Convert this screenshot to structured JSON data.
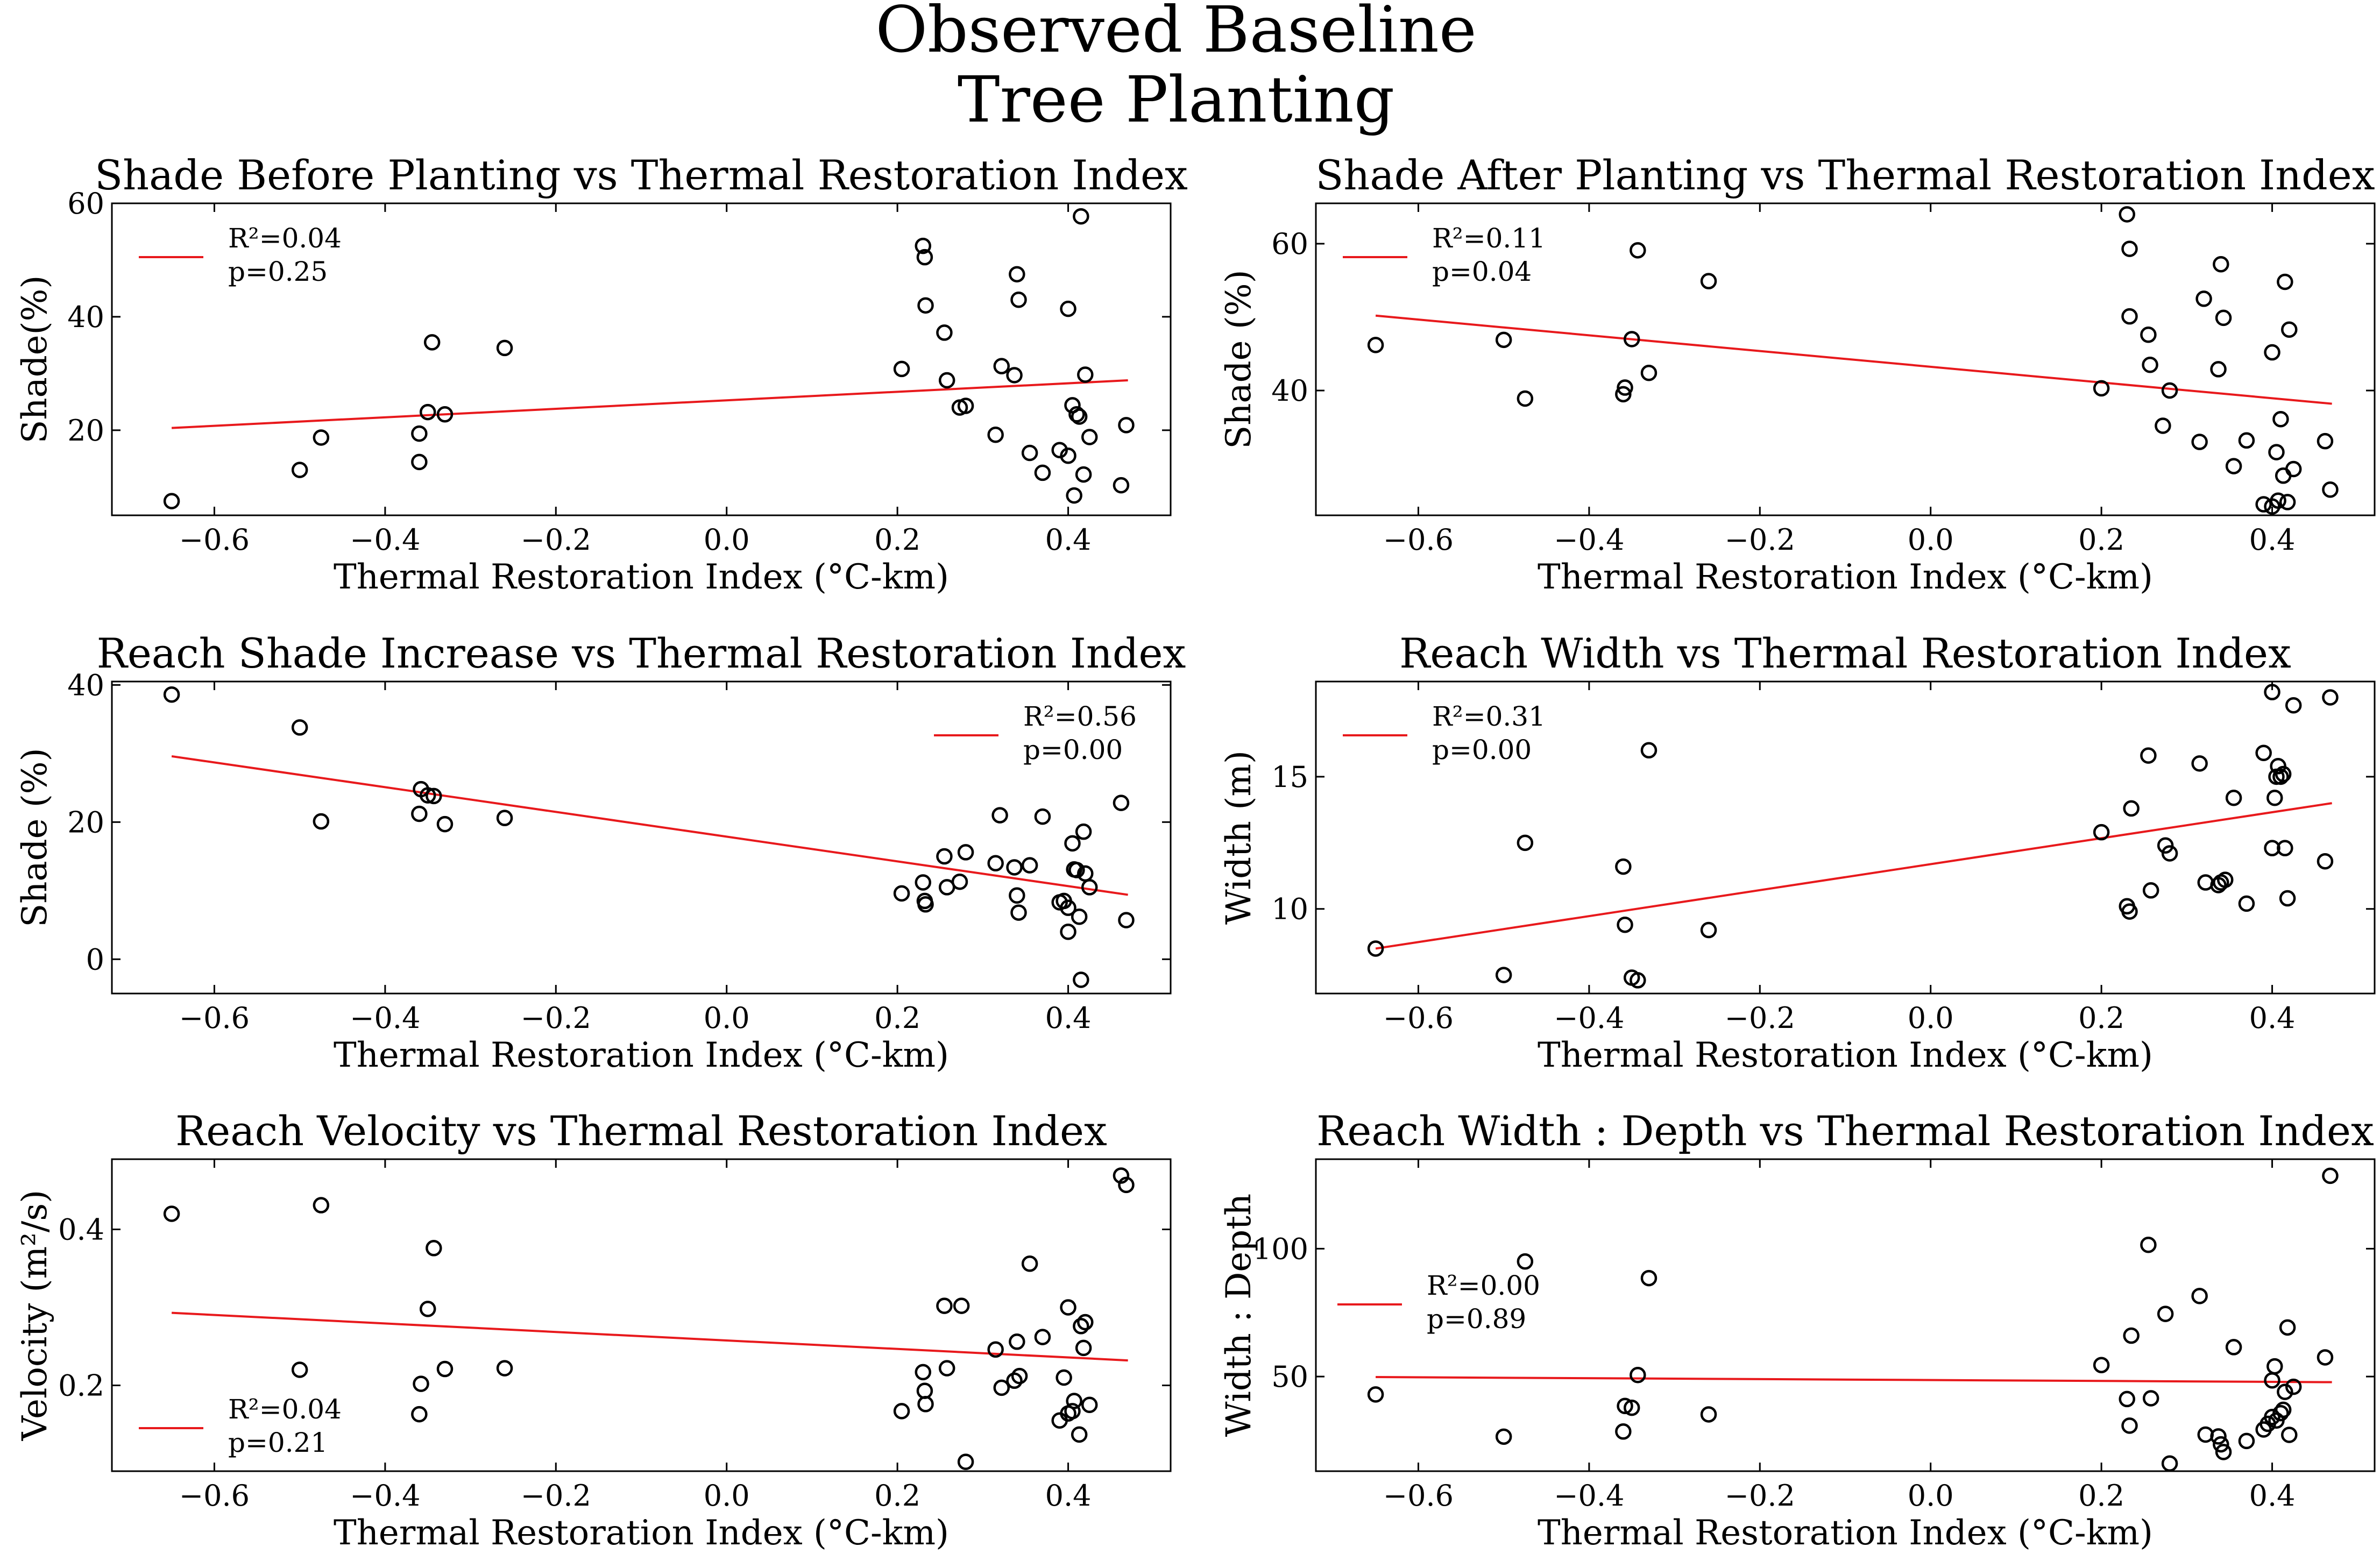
{
  "figure": {
    "title_line1": "Observed Baseline",
    "title_line2": "Tree Planting"
  },
  "chart_data": [
    {
      "type": "scatter",
      "title": "Shade Before Planting vs Thermal Restoration Index",
      "xlabel": "Thermal Restoration Index (°C-km)",
      "ylabel": "Shade(%)",
      "xlim": [
        -0.72,
        0.52
      ],
      "ylim": [
        5,
        60
      ],
      "xticks": [
        -0.6,
        -0.4,
        -0.2,
        0.0,
        0.2,
        0.4
      ],
      "xtick_labels": [
        "−0.6",
        "−0.4",
        "−0.2",
        "0.0",
        "0.2",
        "0.4"
      ],
      "yticks": [
        20,
        40,
        60
      ],
      "ytick_labels": [
        "20",
        "40",
        "60"
      ],
      "legend_position": "upper-left",
      "legend_r2": "R²=0.04",
      "legend_p": "p=0.25",
      "fit": {
        "x": [
          -0.65,
          0.47
        ],
        "y": [
          20.4,
          28.8
        ]
      },
      "points": [
        [
          -0.65,
          7.5
        ],
        [
          -0.5,
          13
        ],
        [
          -0.475,
          18.7
        ],
        [
          -0.36,
          19.4
        ],
        [
          -0.36,
          14.4
        ],
        [
          -0.35,
          23.2
        ],
        [
          -0.345,
          35.5
        ],
        [
          -0.33,
          22.8
        ],
        [
          -0.26,
          34.5
        ],
        [
          0.205,
          30.8
        ],
        [
          0.23,
          52.5
        ],
        [
          0.232,
          50.5
        ],
        [
          0.233,
          42
        ],
        [
          0.255,
          37.2
        ],
        [
          0.258,
          28.8
        ],
        [
          0.273,
          24
        ],
        [
          0.28,
          24.3
        ],
        [
          0.315,
          19.2
        ],
        [
          0.322,
          31.3
        ],
        [
          0.337,
          29.7
        ],
        [
          0.34,
          47.5
        ],
        [
          0.342,
          43
        ],
        [
          0.355,
          16
        ],
        [
          0.37,
          12.5
        ],
        [
          0.39,
          16.5
        ],
        [
          0.4,
          15.5
        ],
        [
          0.4,
          41.4
        ],
        [
          0.405,
          24.4
        ],
        [
          0.407,
          8.5
        ],
        [
          0.41,
          22.8
        ],
        [
          0.413,
          22.4
        ],
        [
          0.415,
          57.7
        ],
        [
          0.418,
          12.2
        ],
        [
          0.42,
          29.8
        ],
        [
          0.425,
          18.8
        ],
        [
          0.462,
          10.3
        ],
        [
          0.468,
          20.9
        ]
      ]
    },
    {
      "type": "scatter",
      "title": "Shade After Planting vs Thermal Restoration Index",
      "xlabel": "Thermal Restoration Index (°C-km)",
      "ylabel": "Shade (%)",
      "xlim": [
        -0.72,
        0.52
      ],
      "ylim": [
        23,
        65.5
      ],
      "xticks": [
        -0.6,
        -0.4,
        -0.2,
        0.0,
        0.2,
        0.4
      ],
      "xtick_labels": [
        "−0.6",
        "−0.4",
        "−0.2",
        "0.0",
        "0.2",
        "0.4"
      ],
      "yticks": [
        40,
        60
      ],
      "ytick_labels": [
        "40",
        "60"
      ],
      "legend_position": "upper-left",
      "legend_r2": "R²=0.11",
      "legend_p": "p=0.04",
      "fit": {
        "x": [
          -0.65,
          0.47
        ],
        "y": [
          50.2,
          38.2
        ]
      },
      "points": [
        [
          -0.65,
          46.2
        ],
        [
          -0.5,
          46.9
        ],
        [
          -0.475,
          38.9
        ],
        [
          -0.36,
          39.5
        ],
        [
          -0.358,
          40.4
        ],
        [
          -0.35,
          47
        ],
        [
          -0.343,
          59.1
        ],
        [
          -0.33,
          42.4
        ],
        [
          -0.26,
          54.9
        ],
        [
          0.2,
          40.3
        ],
        [
          0.23,
          64
        ],
        [
          0.233,
          59.3
        ],
        [
          0.233,
          50.1
        ],
        [
          0.255,
          47.6
        ],
        [
          0.257,
          43.5
        ],
        [
          0.272,
          35.2
        ],
        [
          0.28,
          40
        ],
        [
          0.315,
          33
        ],
        [
          0.32,
          52.5
        ],
        [
          0.337,
          42.9
        ],
        [
          0.34,
          57.2
        ],
        [
          0.343,
          49.9
        ],
        [
          0.355,
          29.7
        ],
        [
          0.37,
          33.2
        ],
        [
          0.39,
          24.5
        ],
        [
          0.4,
          24.2
        ],
        [
          0.4,
          45.2
        ],
        [
          0.405,
          31.6
        ],
        [
          0.407,
          25
        ],
        [
          0.41,
          36.1
        ],
        [
          0.413,
          28.4
        ],
        [
          0.415,
          54.8
        ],
        [
          0.418,
          24.8
        ],
        [
          0.42,
          48.3
        ],
        [
          0.425,
          29.3
        ],
        [
          0.462,
          33.1
        ],
        [
          0.468,
          26.5
        ]
      ]
    },
    {
      "type": "scatter",
      "title": "Reach Shade Increase vs Thermal Restoration Index",
      "xlabel": "Thermal Restoration Index (°C-km)",
      "ylabel": "Shade (%)",
      "xlim": [
        -0.72,
        0.52
      ],
      "ylim": [
        -5,
        40.5
      ],
      "xticks": [
        -0.6,
        -0.4,
        -0.2,
        0.0,
        0.2,
        0.4
      ],
      "xtick_labels": [
        "−0.6",
        "−0.4",
        "−0.2",
        "0.0",
        "0.2",
        "0.4"
      ],
      "yticks": [
        0,
        20,
        40
      ],
      "ytick_labels": [
        "0",
        "20",
        "40"
      ],
      "legend_position": "upper-right",
      "legend_r2": "R²=0.56",
      "legend_p": "p=0.00",
      "fit": {
        "x": [
          -0.65,
          0.47
        ],
        "y": [
          29.6,
          9.4
        ]
      },
      "points": [
        [
          -0.65,
          38.6
        ],
        [
          -0.5,
          33.8
        ],
        [
          -0.475,
          20.1
        ],
        [
          -0.36,
          21.2
        ],
        [
          -0.358,
          24.8
        ],
        [
          -0.35,
          23.9
        ],
        [
          -0.343,
          23.8
        ],
        [
          -0.33,
          19.7
        ],
        [
          -0.26,
          20.6
        ],
        [
          0.205,
          9.6
        ],
        [
          0.23,
          11.2
        ],
        [
          0.232,
          8.5
        ],
        [
          0.233,
          8
        ],
        [
          0.255,
          15
        ],
        [
          0.258,
          10.5
        ],
        [
          0.273,
          11.3
        ],
        [
          0.28,
          15.6
        ],
        [
          0.315,
          14
        ],
        [
          0.32,
          21
        ],
        [
          0.337,
          13.4
        ],
        [
          0.34,
          9.3
        ],
        [
          0.342,
          6.8
        ],
        [
          0.355,
          13.7
        ],
        [
          0.37,
          20.8
        ],
        [
          0.39,
          8.3
        ],
        [
          0.395,
          8.5
        ],
        [
          0.4,
          4
        ],
        [
          0.4,
          7.5
        ],
        [
          0.405,
          16.9
        ],
        [
          0.407,
          13.1
        ],
        [
          0.41,
          13
        ],
        [
          0.413,
          6.2
        ],
        [
          0.415,
          -3
        ],
        [
          0.418,
          18.6
        ],
        [
          0.42,
          12.5
        ],
        [
          0.425,
          10.5
        ],
        [
          0.462,
          22.8
        ],
        [
          0.468,
          5.7
        ]
      ]
    },
    {
      "type": "scatter",
      "title": "Reach Width vs Thermal Restoration Index",
      "xlabel": "Thermal Restoration Index (°C-km)",
      "ylabel": "Width (m)",
      "xlim": [
        -0.72,
        0.52
      ],
      "ylim": [
        6.8,
        18.6
      ],
      "xticks": [
        -0.6,
        -0.4,
        -0.2,
        0.0,
        0.2,
        0.4
      ],
      "xtick_labels": [
        "−0.6",
        "−0.4",
        "−0.2",
        "0.0",
        "0.2",
        "0.4"
      ],
      "yticks": [
        10,
        15
      ],
      "ytick_labels": [
        "10",
        "15"
      ],
      "legend_position": "upper-left",
      "legend_r2": "R²=0.31",
      "legend_p": "p=0.00",
      "fit": {
        "x": [
          -0.65,
          0.47
        ],
        "y": [
          8.5,
          14
        ]
      },
      "points": [
        [
          -0.65,
          8.5
        ],
        [
          -0.5,
          7.5
        ],
        [
          -0.475,
          12.5
        ],
        [
          -0.36,
          11.6
        ],
        [
          -0.358,
          9.4
        ],
        [
          -0.35,
          7.4
        ],
        [
          -0.343,
          7.3
        ],
        [
          -0.33,
          16
        ],
        [
          -0.26,
          9.2
        ],
        [
          0.2,
          12.9
        ],
        [
          0.23,
          10.1
        ],
        [
          0.233,
          9.9
        ],
        [
          0.235,
          13.8
        ],
        [
          0.255,
          15.8
        ],
        [
          0.258,
          10.7
        ],
        [
          0.275,
          12.4
        ],
        [
          0.28,
          12.1
        ],
        [
          0.315,
          15.5
        ],
        [
          0.322,
          11
        ],
        [
          0.337,
          10.9
        ],
        [
          0.34,
          11
        ],
        [
          0.345,
          11.1
        ],
        [
          0.355,
          14.2
        ],
        [
          0.37,
          10.2
        ],
        [
          0.39,
          15.9
        ],
        [
          0.4,
          18.2
        ],
        [
          0.4,
          12.3
        ],
        [
          0.403,
          14.2
        ],
        [
          0.405,
          15
        ],
        [
          0.407,
          15.4
        ],
        [
          0.41,
          15
        ],
        [
          0.413,
          15.1
        ],
        [
          0.415,
          12.3
        ],
        [
          0.418,
          10.4
        ],
        [
          0.425,
          17.7
        ],
        [
          0.462,
          11.8
        ],
        [
          0.468,
          18
        ]
      ]
    },
    {
      "type": "scatter",
      "title": "Reach Velocity vs Thermal Restoration Index",
      "xlabel": "Thermal Restoration Index (°C-km)",
      "ylabel": "Velocity (m²/s)",
      "xlim": [
        -0.72,
        0.52
      ],
      "ylim": [
        0.09,
        0.49
      ],
      "xticks": [
        -0.6,
        -0.4,
        -0.2,
        0.0,
        0.2,
        0.4
      ],
      "xtick_labels": [
        "−0.6",
        "−0.4",
        "−0.2",
        "0.0",
        "0.2",
        "0.4"
      ],
      "yticks": [
        0.2,
        0.4
      ],
      "ytick_labels": [
        "0.2",
        "0.4"
      ],
      "legend_position": "lower-left",
      "legend_r2": "R²=0.04",
      "legend_p": "p=0.21",
      "fit": {
        "x": [
          -0.65,
          0.47
        ],
        "y": [
          0.293,
          0.232
        ]
      },
      "points": [
        [
          -0.65,
          0.42
        ],
        [
          -0.5,
          0.22
        ],
        [
          -0.475,
          0.431
        ],
        [
          -0.36,
          0.163
        ],
        [
          -0.358,
          0.202
        ],
        [
          -0.35,
          0.298
        ],
        [
          -0.343,
          0.376
        ],
        [
          -0.33,
          0.221
        ],
        [
          -0.26,
          0.222
        ],
        [
          0.205,
          0.167
        ],
        [
          0.23,
          0.217
        ],
        [
          0.232,
          0.193
        ],
        [
          0.233,
          0.176
        ],
        [
          0.255,
          0.302
        ],
        [
          0.258,
          0.222
        ],
        [
          0.275,
          0.302
        ],
        [
          0.28,
          0.102
        ],
        [
          0.315,
          0.246
        ],
        [
          0.322,
          0.197
        ],
        [
          0.337,
          0.206
        ],
        [
          0.34,
          0.256
        ],
        [
          0.343,
          0.212
        ],
        [
          0.355,
          0.356
        ],
        [
          0.37,
          0.262
        ],
        [
          0.39,
          0.155
        ],
        [
          0.395,
          0.21
        ],
        [
          0.4,
          0.164
        ],
        [
          0.4,
          0.3
        ],
        [
          0.405,
          0.167
        ],
        [
          0.407,
          0.18
        ],
        [
          0.413,
          0.137
        ],
        [
          0.415,
          0.276
        ],
        [
          0.418,
          0.248
        ],
        [
          0.42,
          0.281
        ],
        [
          0.425,
          0.175
        ],
        [
          0.462,
          0.469
        ],
        [
          0.468,
          0.457
        ]
      ]
    },
    {
      "type": "scatter",
      "title": "Reach Width : Depth vs Thermal Restoration Index",
      "xlabel": "Thermal Restoration Index (°C-km)",
      "ylabel": "Width : Depth",
      "xlim": [
        -0.72,
        0.52
      ],
      "ylim": [
        13,
        135
      ],
      "xticks": [
        -0.6,
        -0.4,
        -0.2,
        0.0,
        0.2,
        0.4
      ],
      "xtick_labels": [
        "−0.6",
        "−0.4",
        "−0.2",
        "0.0",
        "0.2",
        "0.4"
      ],
      "yticks": [
        50,
        100
      ],
      "ytick_labels": [
        "50",
        "100"
      ],
      "legend_position": "center-left",
      "legend_r2": "R²=0.00",
      "legend_p": "p=0.89",
      "fit": {
        "x": [
          -0.65,
          0.47
        ],
        "y": [
          49.8,
          47.8
        ]
      },
      "points": [
        [
          -0.65,
          43
        ],
        [
          -0.5,
          26.5
        ],
        [
          -0.475,
          95
        ],
        [
          -0.36,
          28.5
        ],
        [
          -0.358,
          38.5
        ],
        [
          -0.35,
          37.8
        ],
        [
          -0.343,
          50.6
        ],
        [
          -0.33,
          88.5
        ],
        [
          -0.26,
          35.2
        ],
        [
          0.2,
          54.5
        ],
        [
          0.23,
          41.2
        ],
        [
          0.233,
          30.8
        ],
        [
          0.235,
          66
        ],
        [
          0.255,
          101.5
        ],
        [
          0.258,
          41.5
        ],
        [
          0.275,
          74.5
        ],
        [
          0.28,
          16
        ],
        [
          0.315,
          81.5
        ],
        [
          0.322,
          27.3
        ],
        [
          0.337,
          26.6
        ],
        [
          0.34,
          23.5
        ],
        [
          0.343,
          20.5
        ],
        [
          0.355,
          61.5
        ],
        [
          0.37,
          24.8
        ],
        [
          0.39,
          29.3
        ],
        [
          0.395,
          31.5
        ],
        [
          0.4,
          34.2
        ],
        [
          0.4,
          48.5
        ],
        [
          0.403,
          54
        ],
        [
          0.405,
          32.8
        ],
        [
          0.41,
          35.7
        ],
        [
          0.413,
          37
        ],
        [
          0.415,
          44
        ],
        [
          0.418,
          69.2
        ],
        [
          0.42,
          27.2
        ],
        [
          0.425,
          46
        ],
        [
          0.462,
          57.5
        ],
        [
          0.468,
          128.5
        ]
      ]
    }
  ]
}
